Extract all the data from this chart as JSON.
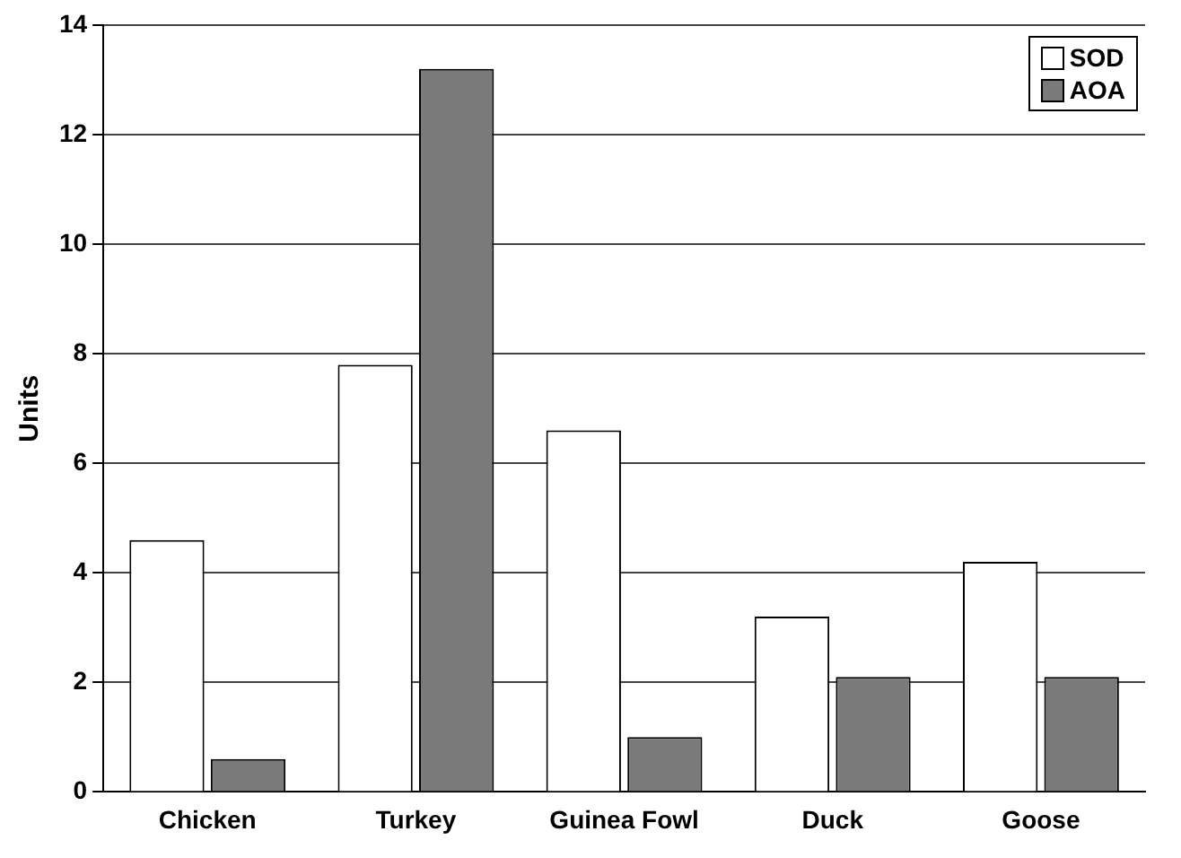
{
  "chart_data": {
    "type": "bar",
    "ylabel": "Units",
    "categories": [
      "Chicken",
      "Turkey",
      "Guinea Fowl",
      "Duck",
      "Goose"
    ],
    "series": [
      {
        "name": "SOD",
        "color": "#ffffff",
        "values": [
          4.6,
          7.8,
          6.6,
          3.2,
          4.2
        ]
      },
      {
        "name": "AOA",
        "color": "#7a7a7a",
        "values": [
          0.6,
          13.2,
          1.0,
          2.1,
          2.1
        ]
      }
    ],
    "ylim": [
      0,
      14
    ],
    "yticks": [
      0,
      2,
      4,
      6,
      8,
      10,
      12,
      14
    ],
    "grid": "y",
    "legend": "top right"
  }
}
